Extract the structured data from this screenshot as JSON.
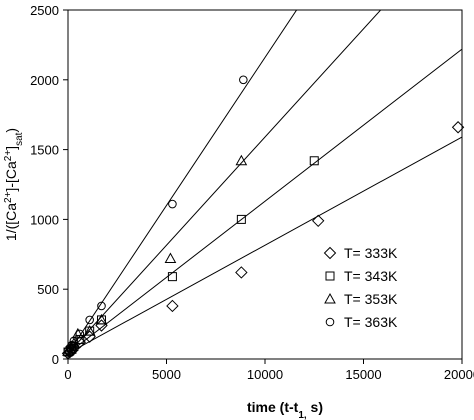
{
  "chart_data": {
    "type": "scatter",
    "xlabel": "time (t-t",
    "xlabel_sub": "1,",
    "xlabel_end": " s)",
    "ylabel": {
      "a": "1/([Ca",
      "sup1": "2+",
      "b": "]-[Ca",
      "sup2": "2+",
      "c": "]",
      "sub": "sat",
      "d": ")"
    },
    "xlim": [
      0,
      20000
    ],
    "ylim": [
      0,
      2500
    ],
    "x_ticks": [
      0,
      5000,
      10000,
      15000,
      20000
    ],
    "x_tick_labels": [
      "0",
      "5000",
      "10000",
      "15000",
      "20000"
    ],
    "y_ticks": [
      0,
      500,
      1000,
      1500,
      2000,
      2500
    ],
    "y_tick_labels": [
      "0",
      "500",
      "1000",
      "1500",
      "2000",
      "2500"
    ],
    "grid": false,
    "legend_position": "bottom-right",
    "series": [
      {
        "name": "T= 333K",
        "marker": "diamond",
        "x": [
          0,
          100,
          200,
          300,
          600,
          1100,
          1700,
          5300,
          8800,
          12700,
          19800
        ],
        "y": [
          40,
          50,
          60,
          80,
          120,
          160,
          240,
          380,
          620,
          990,
          1660
        ],
        "fit": {
          "slope": 0.0775,
          "intercept": 40
        }
      },
      {
        "name": "T= 343K",
        "marker": "square",
        "x": [
          0,
          100,
          200,
          300,
          600,
          1100,
          1700,
          5300,
          8800,
          12500
        ],
        "y": [
          50,
          60,
          70,
          90,
          140,
          200,
          280,
          590,
          1000,
          1420
        ],
        "fit": {
          "slope": 0.109,
          "intercept": 40
        }
      },
      {
        "name": "T= 353K",
        "marker": "triangle",
        "x": [
          0,
          100,
          200,
          300,
          500,
          1100,
          1700,
          5200,
          8800
        ],
        "y": [
          55,
          70,
          90,
          110,
          180,
          200,
          280,
          720,
          1420
        ],
        "fit": {
          "slope": 0.155,
          "intercept": 40
        }
      },
      {
        "name": "T= 363K",
        "marker": "circle",
        "x": [
          0,
          100,
          200,
          300,
          600,
          1100,
          1700,
          5300,
          8900
        ],
        "y": [
          60,
          80,
          100,
          130,
          180,
          280,
          380,
          1110,
          2000
        ],
        "fit": {
          "slope": 0.212,
          "intercept": 40
        }
      }
    ]
  }
}
